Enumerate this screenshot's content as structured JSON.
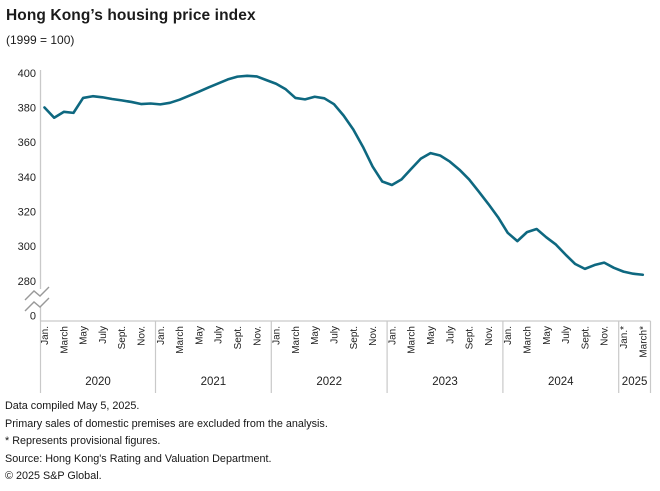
{
  "header": {
    "title": "Hong Kong’s housing price index",
    "subtitle": "(1999 = 100)"
  },
  "chart_data": {
    "type": "line",
    "title": "Hong Kong’s housing price index",
    "subtitle": "(1999 = 100)",
    "x_start": "2020-01",
    "x_end": "2025-03",
    "x_frequency": "monthly",
    "years": [
      "2020",
      "2021",
      "2022",
      "2023",
      "2024",
      "2025"
    ],
    "month_tick_labels": [
      "Jan.",
      "March",
      "May",
      "July",
      "Sept.",
      "Nov."
    ],
    "final_year_tick_labels": [
      "Jan.*",
      "March*"
    ],
    "y_tick_labels": [
      "400",
      "380",
      "360",
      "340",
      "320",
      "300",
      "280",
      "0"
    ],
    "y_ticks": [
      400,
      380,
      360,
      340,
      320,
      300,
      280
    ],
    "ylim": [
      280,
      400
    ],
    "axis_break_to_zero": true,
    "grid": false,
    "legend_position": "none",
    "line_color": "#0e6880",
    "axis_color": "#c9c9c9",
    "series": [
      {
        "name": "Housing price index (1999 = 100)",
        "values": [
          380.1,
          374.2,
          377.6,
          377.0,
          385.6,
          386.6,
          386.0,
          385.0,
          384.2,
          383.3,
          382.1,
          382.4,
          381.9,
          382.8,
          384.6,
          386.9,
          389.2,
          391.7,
          394.0,
          396.3,
          397.9,
          398.4,
          398.0,
          395.9,
          393.8,
          390.6,
          385.6,
          384.8,
          386.3,
          385.4,
          382.0,
          375.4,
          367.4,
          357.4,
          346.0,
          337.4,
          335.4,
          338.6,
          344.7,
          350.6,
          353.8,
          352.4,
          348.9,
          344.2,
          338.6,
          331.6,
          324.4,
          316.8,
          307.8,
          303.0,
          308.2,
          310.0,
          305.2,
          301.0,
          295.2,
          289.8,
          287.0,
          289.2,
          290.6,
          287.6,
          285.4,
          284.2,
          283.6
        ]
      }
    ]
  },
  "footer": {
    "lines": [
      "Data compiled May 5, 2025.",
      "Primary sales of domestic premises are excluded from the analysis.",
      "* Represents provisional figures.",
      "Source: Hong Kong's Rating and Valuation Department.",
      "© 2025 S&P Global."
    ]
  }
}
